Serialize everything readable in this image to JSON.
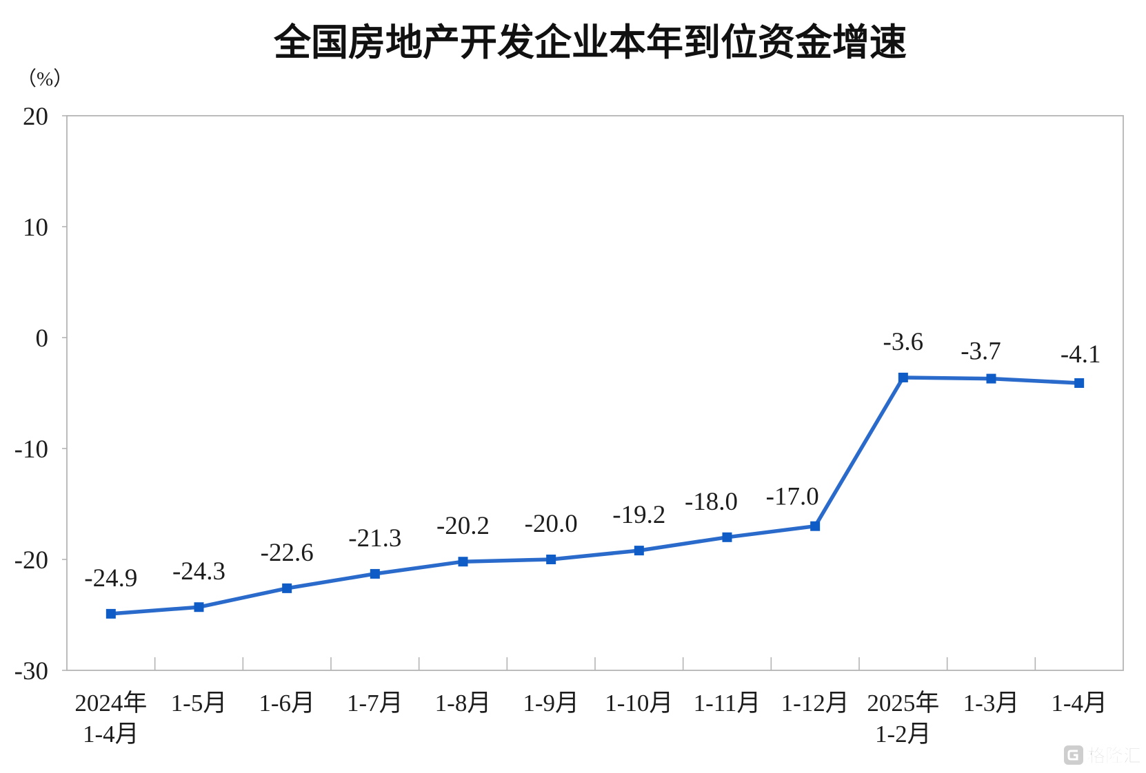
{
  "chart_data": {
    "type": "line",
    "title": "全国房地产开发企业本年到位资金增速",
    "ylabel": "（%）",
    "categories": [
      [
        "2024年",
        "1-4月"
      ],
      [
        "1-5月"
      ],
      [
        "1-6月"
      ],
      [
        "1-7月"
      ],
      [
        "1-8月"
      ],
      [
        "1-9月"
      ],
      [
        "1-10月"
      ],
      [
        "1-11月"
      ],
      [
        "1-12月"
      ],
      [
        "2025年",
        "1-2月"
      ],
      [
        "1-3月"
      ],
      [
        "1-4月"
      ]
    ],
    "values": [
      -24.9,
      -24.3,
      -22.6,
      -21.3,
      -20.2,
      -20.0,
      -19.2,
      -18.0,
      -17.0,
      -3.6,
      -3.7,
      -4.1
    ],
    "data_labels": [
      "-24.9",
      "-24.3",
      "-22.6",
      "-21.3",
      "-20.2",
      "-20.0",
      "-19.2",
      "-18.0",
      "-17.0",
      "-3.6",
      "-3.7",
      "-4.1"
    ],
    "ylim": [
      -30,
      20
    ],
    "yticks": [
      20,
      10,
      0,
      -10,
      -20,
      -30
    ],
    "grid": false,
    "legend": "none",
    "markers": "square",
    "colors": {
      "line": "#2a6acb",
      "marker": "#0f5cc6",
      "axis": "#b4b4b4",
      "text": "#1c1c1c"
    }
  },
  "watermark": {
    "text": "格隆汇",
    "icon": "gelonghui-logo-icon"
  }
}
